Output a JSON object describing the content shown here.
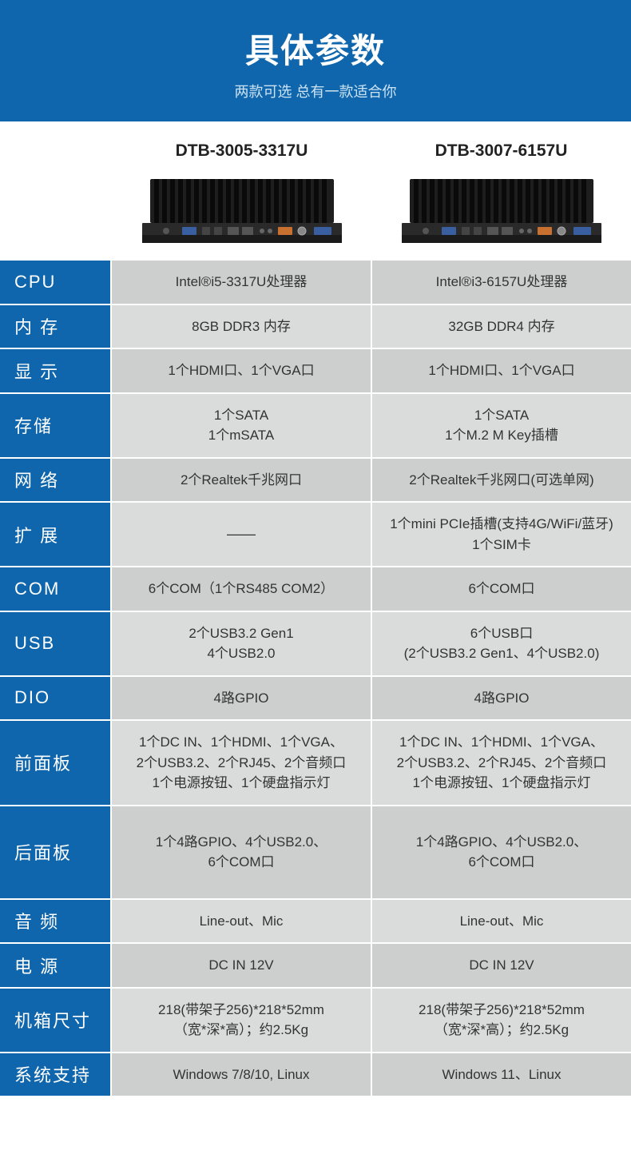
{
  "header": {
    "title": "具体参数",
    "subtitle": "两款可选 总有一款适合你",
    "bg_color": "#0f66ac",
    "title_color": "#ffffff",
    "subtitle_color": "#cce3f4"
  },
  "models": [
    {
      "name": "DTB-3005-3317U"
    },
    {
      "name": "DTB-3007-6157U"
    }
  ],
  "table": {
    "label_bg": "#0f66ac",
    "label_color": "#ffffff",
    "cell_bg_odd": "#cdcfcf",
    "cell_bg_even": "#dadcdc",
    "rows": [
      {
        "label": "CPU",
        "v1": "Intel®i5-3317U处理器",
        "v2": "Intel®i3-6157U处理器"
      },
      {
        "label": "内 存",
        "v1": "8GB DDR3 内存",
        "v2": "32GB DDR4 内存"
      },
      {
        "label": "显 示",
        "v1": "1个HDMI口、1个VGA口",
        "v2": "1个HDMI口、1个VGA口"
      },
      {
        "label": "存储",
        "v1": "1个SATA\n1个mSATA",
        "v2": "1个SATA\n1个M.2 M Key插槽"
      },
      {
        "label": "网 络",
        "v1": "2个Realtek千兆网口",
        "v2": "2个Realtek千兆网口(可选单网)"
      },
      {
        "label": "扩 展",
        "v1": "——",
        "v2": "1个mini PCIe插槽(支持4G/WiFi/蓝牙)\n1个SIM卡"
      },
      {
        "label": "COM",
        "v1": "6个COM（1个RS485 COM2）",
        "v2": "6个COM口"
      },
      {
        "label": "USB",
        "v1": "2个USB3.2 Gen1\n4个USB2.0",
        "v2": "6个USB口\n(2个USB3.2 Gen1、4个USB2.0)"
      },
      {
        "label": "DIO",
        "v1": "4路GPIO",
        "v2": "4路GPIO"
      },
      {
        "label": "前面板",
        "v1": "1个DC IN、1个HDMI、1个VGA、\n2个USB3.2、2个RJ45、2个音频口\n1个电源按钮、1个硬盘指示灯",
        "v2": "1个DC IN、1个HDMI、1个VGA、\n2个USB3.2、2个RJ45、2个音频口\n1个电源按钮、1个硬盘指示灯"
      },
      {
        "label": "后面板",
        "v1": "1个4路GPIO、4个USB2.0、\n6个COM口",
        "v2": "1个4路GPIO、4个USB2.0、\n6个COM口"
      },
      {
        "label": "音 频",
        "v1": "Line-out、Mic",
        "v2": "Line-out、Mic"
      },
      {
        "label": "电 源",
        "v1": "DC IN 12V",
        "v2": "DC IN 12V"
      },
      {
        "label": "机箱尺寸",
        "v1": "218(带架子256)*218*52mm\n（宽*深*高）；约2.5Kg",
        "v2": "218(带架子256)*218*52mm\n（宽*深*高）；约2.5Kg"
      },
      {
        "label": "系统支持",
        "v1": "Windows 7/8/10, Linux",
        "v2": "Windows 11、Linux"
      }
    ]
  }
}
